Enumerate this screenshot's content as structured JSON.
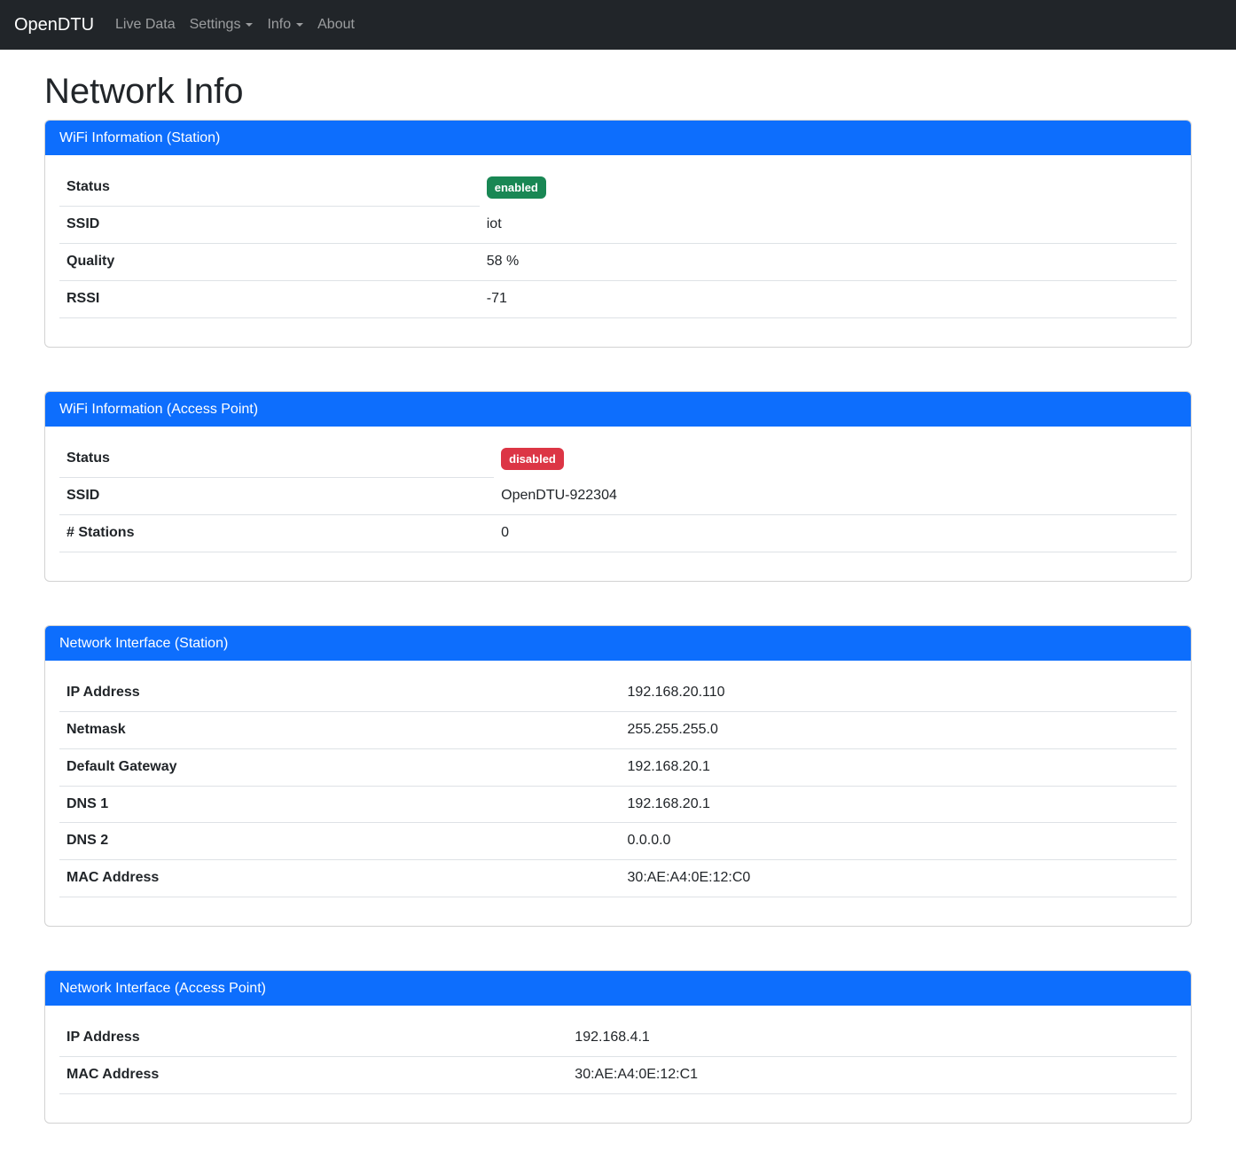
{
  "navbar": {
    "brand": "OpenDTU",
    "items": [
      {
        "label": "Live Data",
        "has_dropdown": false
      },
      {
        "label": "Settings",
        "has_dropdown": true
      },
      {
        "label": "Info",
        "has_dropdown": true
      },
      {
        "label": "About",
        "has_dropdown": false
      }
    ]
  },
  "page": {
    "title": "Network Info"
  },
  "colors": {
    "navbar_bg": "#212529",
    "header_blue": "#0d6efd",
    "badge_success": "#198754",
    "badge_danger": "#dc3545"
  },
  "cards": [
    {
      "title": "WiFi Information (Station)",
      "rows": [
        {
          "label": "Status",
          "badge": {
            "text": "enabled",
            "variant": "success"
          }
        },
        {
          "label": "SSID",
          "value": "iot"
        },
        {
          "label": "Quality",
          "value": "58 %"
        },
        {
          "label": "RSSI",
          "value": "-71"
        }
      ]
    },
    {
      "title": "WiFi Information (Access Point)",
      "rows": [
        {
          "label": "Status",
          "badge": {
            "text": "disabled",
            "variant": "danger"
          }
        },
        {
          "label": "SSID",
          "value": "OpenDTU-922304"
        },
        {
          "label": "# Stations",
          "value": "0"
        }
      ]
    },
    {
      "title": "Network Interface (Station)",
      "rows": [
        {
          "label": "IP Address",
          "value": "192.168.20.110"
        },
        {
          "label": "Netmask",
          "value": "255.255.255.0"
        },
        {
          "label": "Default Gateway",
          "value": "192.168.20.1"
        },
        {
          "label": "DNS 1",
          "value": "192.168.20.1"
        },
        {
          "label": "DNS 2",
          "value": "0.0.0.0"
        },
        {
          "label": "MAC Address",
          "value": "30:AE:A4:0E:12:C0"
        }
      ]
    },
    {
      "title": "Network Interface (Access Point)",
      "rows": [
        {
          "label": "IP Address",
          "value": "192.168.4.1"
        },
        {
          "label": "MAC Address",
          "value": "30:AE:A4:0E:12:C1"
        }
      ]
    }
  ]
}
